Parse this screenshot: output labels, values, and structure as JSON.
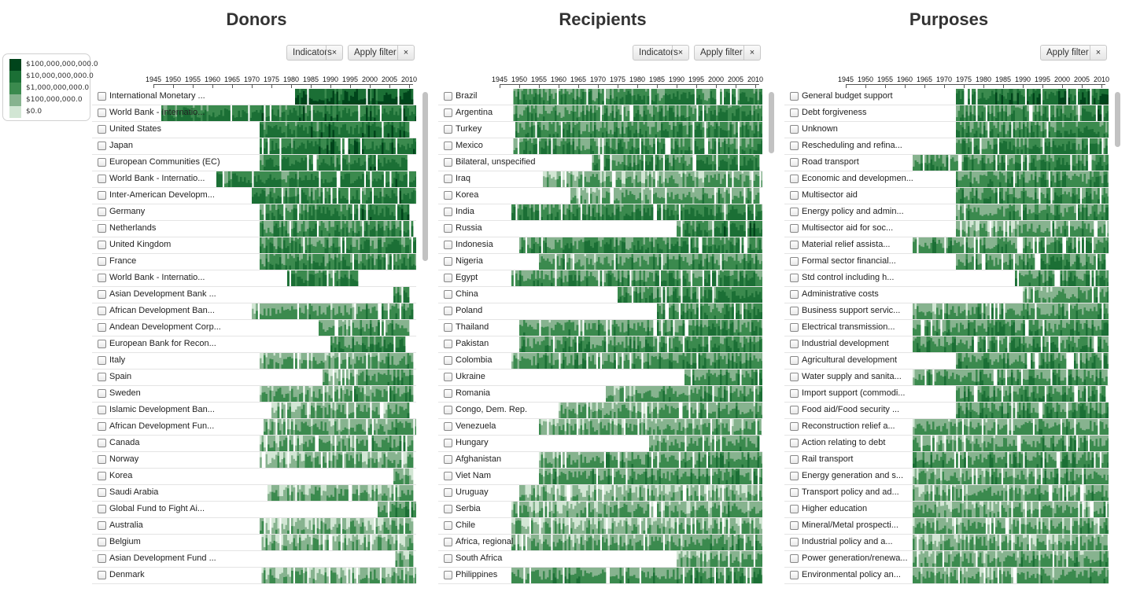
{
  "legend": {
    "items": [
      {
        "label": "$100,000,000,000.0",
        "color": "#00441b"
      },
      {
        "label": "$10,000,000,000.0",
        "color": "#1b6f35"
      },
      {
        "label": "$1,000,000,000.0",
        "color": "#3b8a4e"
      },
      {
        "label": "$100,000,000.0",
        "color": "#87b38f"
      },
      {
        "label": "$0.0",
        "color": "#d2e6d4"
      }
    ]
  },
  "axis": {
    "ticks": [
      "1945",
      "1950",
      "1955",
      "1960",
      "1965",
      "1970",
      "1975",
      "1980",
      "1985",
      "1990",
      "1995",
      "2000",
      "2005",
      "2010"
    ]
  },
  "panels": [
    {
      "title": "Donors",
      "buttons": [
        {
          "label": "Indicators",
          "close": "×"
        },
        {
          "label": "Apply filter",
          "close": "×"
        }
      ],
      "rows": [
        {
          "label": "International Monetary ...",
          "start": 1981,
          "end": 2010,
          "level": 4.2
        },
        {
          "label": "World Bank - Internatio...",
          "start": 1947,
          "end": 2011,
          "level": 3.3
        },
        {
          "label": "United States",
          "start": 1972,
          "end": 2009,
          "level": 3.4
        },
        {
          "label": "Japan",
          "start": 1972,
          "end": 2011,
          "level": 3.4
        },
        {
          "label": "European Communities (EC)",
          "start": 1972,
          "end": 2009,
          "level": 3.3
        },
        {
          "label": "World Bank - Internatio...",
          "start": 1961,
          "end": 2011,
          "level": 3.2
        },
        {
          "label": "Inter-American Developm...",
          "start": 1970,
          "end": 2011,
          "level": 3.1
        },
        {
          "label": "Germany",
          "start": 1972,
          "end": 2009,
          "level": 3.2
        },
        {
          "label": "Netherlands",
          "start": 1972,
          "end": 2010,
          "level": 2.8
        },
        {
          "label": "United Kingdom",
          "start": 1972,
          "end": 2011,
          "level": 2.9
        },
        {
          "label": "France",
          "start": 1972,
          "end": 2011,
          "level": 2.9
        },
        {
          "label": "World Bank - Internatio...",
          "start": 1979,
          "end": 1996,
          "level": 3.2
        },
        {
          "label": "Asian Development Bank ...",
          "start": 2006,
          "end": 2009,
          "level": 3.0
        },
        {
          "label": "African Development Ban...",
          "start": 1970,
          "end": 2010,
          "level": 2.3
        },
        {
          "label": "Andean Development Corp...",
          "start": 1987,
          "end": 2009,
          "level": 2.3
        },
        {
          "label": "European Bank for Recon...",
          "start": 1990,
          "end": 2008,
          "level": 2.9
        },
        {
          "label": "Italy",
          "start": 1972,
          "end": 2010,
          "level": 2.2
        },
        {
          "label": "Spain",
          "start": 1988,
          "end": 2010,
          "level": 2.3
        },
        {
          "label": "Sweden",
          "start": 1972,
          "end": 2010,
          "level": 2.2
        },
        {
          "label": "Islamic Development Ban...",
          "start": 1975,
          "end": 2009,
          "level": 2.1
        },
        {
          "label": "African Development Fun...",
          "start": 1973,
          "end": 2011,
          "level": 2.2
        },
        {
          "label": "Canada",
          "start": 1972,
          "end": 2010,
          "level": 2.2
        },
        {
          "label": "Norway",
          "start": 1972,
          "end": 2010,
          "level": 2.0
        },
        {
          "label": "Korea",
          "start": 2006,
          "end": 2010,
          "level": 2.0
        },
        {
          "label": "Saudi Arabia",
          "start": 1974,
          "end": 2010,
          "level": 1.9
        },
        {
          "label": "Global Fund to Fight Ai...",
          "start": 2002,
          "end": 2011,
          "level": 2.4
        },
        {
          "label": "Australia",
          "start": 1972,
          "end": 2010,
          "level": 1.9
        },
        {
          "label": "Belgium",
          "start": 1972,
          "end": 2010,
          "level": 1.7
        },
        {
          "label": "Asian Development Fund ...",
          "start": 2006,
          "end": 2010,
          "level": 1.8
        },
        {
          "label": "Denmark",
          "start": 1972,
          "end": 2011,
          "level": 1.8
        }
      ]
    },
    {
      "title": "Recipients",
      "buttons": [
        {
          "label": "Indicators",
          "close": "×"
        },
        {
          "label": "Apply filter",
          "close": "×"
        }
      ],
      "rows": [
        {
          "label": "Brazil",
          "start": 1948,
          "end": 2011,
          "level": 3.0
        },
        {
          "label": "Argentina",
          "start": 1948,
          "end": 2011,
          "level": 2.7
        },
        {
          "label": "Turkey",
          "start": 1948,
          "end": 2011,
          "level": 2.8
        },
        {
          "label": "Mexico",
          "start": 1948,
          "end": 2011,
          "level": 2.8
        },
        {
          "label": "Bilateral, unspecified",
          "start": 1968,
          "end": 2010,
          "level": 2.9
        },
        {
          "label": "Iraq",
          "start": 1956,
          "end": 2011,
          "level": 2.0
        },
        {
          "label": "Korea",
          "start": 1963,
          "end": 2010,
          "level": 2.2
        },
        {
          "label": "India",
          "start": 1948,
          "end": 2011,
          "level": 3.0
        },
        {
          "label": "Russia",
          "start": 1990,
          "end": 2011,
          "level": 3.2
        },
        {
          "label": "Indonesia",
          "start": 1950,
          "end": 2011,
          "level": 2.9
        },
        {
          "label": "Nigeria",
          "start": 1955,
          "end": 2011,
          "level": 2.4
        },
        {
          "label": "Egypt",
          "start": 1948,
          "end": 2011,
          "level": 2.6
        },
        {
          "label": "China",
          "start": 1975,
          "end": 2011,
          "level": 3.1
        },
        {
          "label": "Poland",
          "start": 1985,
          "end": 2011,
          "level": 2.8
        },
        {
          "label": "Thailand",
          "start": 1950,
          "end": 2011,
          "level": 2.5
        },
        {
          "label": "Pakistan",
          "start": 1950,
          "end": 2011,
          "level": 2.7
        },
        {
          "label": "Colombia",
          "start": 1948,
          "end": 2011,
          "level": 2.5
        },
        {
          "label": "Ukraine",
          "start": 1992,
          "end": 2011,
          "level": 2.5
        },
        {
          "label": "Romania",
          "start": 1972,
          "end": 2011,
          "level": 2.3
        },
        {
          "label": "Congo, Dem. Rep.",
          "start": 1960,
          "end": 2011,
          "level": 2.2
        },
        {
          "label": "Venezuela",
          "start": 1955,
          "end": 2011,
          "level": 2.1
        },
        {
          "label": "Hungary",
          "start": 1983,
          "end": 2011,
          "level": 2.3
        },
        {
          "label": "Afghanistan",
          "start": 1955,
          "end": 2011,
          "level": 2.4
        },
        {
          "label": "Viet Nam",
          "start": 1955,
          "end": 2011,
          "level": 2.5
        },
        {
          "label": "Uruguay",
          "start": 1950,
          "end": 2011,
          "level": 1.8
        },
        {
          "label": "Serbia",
          "start": 1948,
          "end": 2011,
          "level": 2.1
        },
        {
          "label": "Chile",
          "start": 1948,
          "end": 2011,
          "level": 1.8
        },
        {
          "label": "Africa, regional",
          "start": 1948,
          "end": 2011,
          "level": 2.2
        },
        {
          "label": "South Africa",
          "start": 1990,
          "end": 2011,
          "level": 2.0
        },
        {
          "label": "Philippines",
          "start": 1948,
          "end": 2011,
          "level": 2.5
        }
      ]
    },
    {
      "title": "Purposes",
      "buttons": [
        {
          "label": "Apply filter",
          "close": "×"
        }
      ],
      "rows": [
        {
          "label": "General budget support",
          "start": 1973,
          "end": 2011,
          "level": 3.6
        },
        {
          "label": "Debt forgiveness",
          "start": 1973,
          "end": 2011,
          "level": 3.1
        },
        {
          "label": "Unknown",
          "start": 1973,
          "end": 2011,
          "level": 2.9
        },
        {
          "label": "Rescheduling and refina...",
          "start": 1973,
          "end": 2011,
          "level": 3.0
        },
        {
          "label": "Road transport",
          "start": 1962,
          "end": 2011,
          "level": 2.8
        },
        {
          "label": "Economic and developmen...",
          "start": 1973,
          "end": 2011,
          "level": 2.7
        },
        {
          "label": "Multisector aid",
          "start": 1973,
          "end": 2011,
          "level": 2.6
        },
        {
          "label": "Energy policy and admin...",
          "start": 1973,
          "end": 2011,
          "level": 2.5
        },
        {
          "label": "Multisector aid for soc...",
          "start": 1973,
          "end": 2011,
          "level": 2.3
        },
        {
          "label": "Material relief assista...",
          "start": 1962,
          "end": 2011,
          "level": 2.6
        },
        {
          "label": "Formal sector financial...",
          "start": 1973,
          "end": 2010,
          "level": 2.6
        },
        {
          "label": "Std control including h...",
          "start": 1988,
          "end": 2011,
          "level": 2.7
        },
        {
          "label": "Administrative costs",
          "start": 1990,
          "end": 2011,
          "level": 2.2
        },
        {
          "label": "Business support servic...",
          "start": 1962,
          "end": 2011,
          "level": 2.4
        },
        {
          "label": "Electrical transmission...",
          "start": 1962,
          "end": 2011,
          "level": 2.6
        },
        {
          "label": "Industrial development",
          "start": 1962,
          "end": 2011,
          "level": 2.7
        },
        {
          "label": "Agricultural development",
          "start": 1973,
          "end": 2011,
          "level": 2.6
        },
        {
          "label": "Water supply and sanita...",
          "start": 1962,
          "end": 2011,
          "level": 2.5
        },
        {
          "label": "Import support (commodi...",
          "start": 1973,
          "end": 2010,
          "level": 2.7
        },
        {
          "label": "Food aid/Food security ...",
          "start": 1973,
          "end": 2011,
          "level": 2.6
        },
        {
          "label": "Reconstruction relief a...",
          "start": 1962,
          "end": 2011,
          "level": 2.3
        },
        {
          "label": "Action relating to debt",
          "start": 1962,
          "end": 2011,
          "level": 2.3
        },
        {
          "label": "Rail transport",
          "start": 1962,
          "end": 2011,
          "level": 2.6
        },
        {
          "label": "Energy generation and s...",
          "start": 1962,
          "end": 2011,
          "level": 2.3
        },
        {
          "label": "Transport policy and ad...",
          "start": 1962,
          "end": 2011,
          "level": 2.2
        },
        {
          "label": "Higher education",
          "start": 1962,
          "end": 2011,
          "level": 2.1
        },
        {
          "label": "Mineral/Metal prospecti...",
          "start": 1962,
          "end": 2011,
          "level": 2.1
        },
        {
          "label": "Industrial policy and a...",
          "start": 1962,
          "end": 2011,
          "level": 2.0
        },
        {
          "label": "Power generation/renewa...",
          "start": 1962,
          "end": 2011,
          "level": 2.2
        },
        {
          "label": "Environmental policy an...",
          "start": 1962,
          "end": 2011,
          "level": 2.2
        }
      ]
    }
  ],
  "chart_data": {
    "type": "heatmap",
    "x_range": [
      1945,
      2011
    ],
    "legend_values": [
      "$0.0",
      "$100,000,000.0",
      "$1,000,000,000.0",
      "$10,000,000,000.0",
      "$100,000,000,000.0"
    ],
    "panels": [
      "Donors",
      "Recipients",
      "Purposes"
    ]
  }
}
